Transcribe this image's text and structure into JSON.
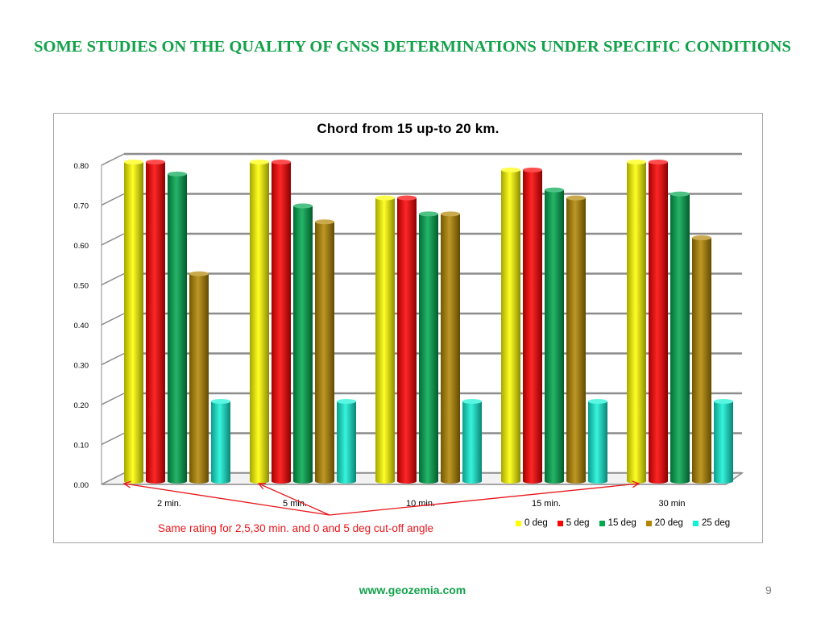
{
  "slide": {
    "title": "SOME STUDIES ON THE QUALITY OF GNSS DETERMINATIONS UNDER SPECIFIC CONDITIONS",
    "footer_url": "www.geozemia.com",
    "page_number": "9"
  },
  "annotation": "Same rating for 2,5,30 min. and 0 and 5 deg cut-off angle",
  "chart_data": {
    "type": "bar",
    "title": "Chord from 15 up-to 20 km.",
    "categories": [
      "2 min.",
      "5 min.",
      "10 min.",
      "15 min.",
      "30 min"
    ],
    "yticks": [
      "0.00",
      "0.10",
      "0.20",
      "0.30",
      "0.40",
      "0.50",
      "0.60",
      "0.70",
      "0.80"
    ],
    "ylim": [
      0,
      0.8
    ],
    "grid": true,
    "legend_position": "bottom-right",
    "series": [
      {
        "name": "0 deg",
        "color": "#ffff00",
        "values": [
          0.8,
          0.8,
          0.71,
          0.78,
          0.8
        ]
      },
      {
        "name": "5 deg",
        "color": "#ff0000",
        "values": [
          0.8,
          0.8,
          0.71,
          0.78,
          0.8
        ]
      },
      {
        "name": "15 deg",
        "color": "#00a84f",
        "values": [
          0.77,
          0.69,
          0.67,
          0.73,
          0.72
        ]
      },
      {
        "name": "20 deg",
        "color": "#b38600",
        "values": [
          0.52,
          0.65,
          0.67,
          0.71,
          0.61
        ]
      },
      {
        "name": "25 deg",
        "color": "#12f2d6",
        "values": [
          0.2,
          0.2,
          0.2,
          0.2,
          0.2
        ]
      }
    ]
  }
}
